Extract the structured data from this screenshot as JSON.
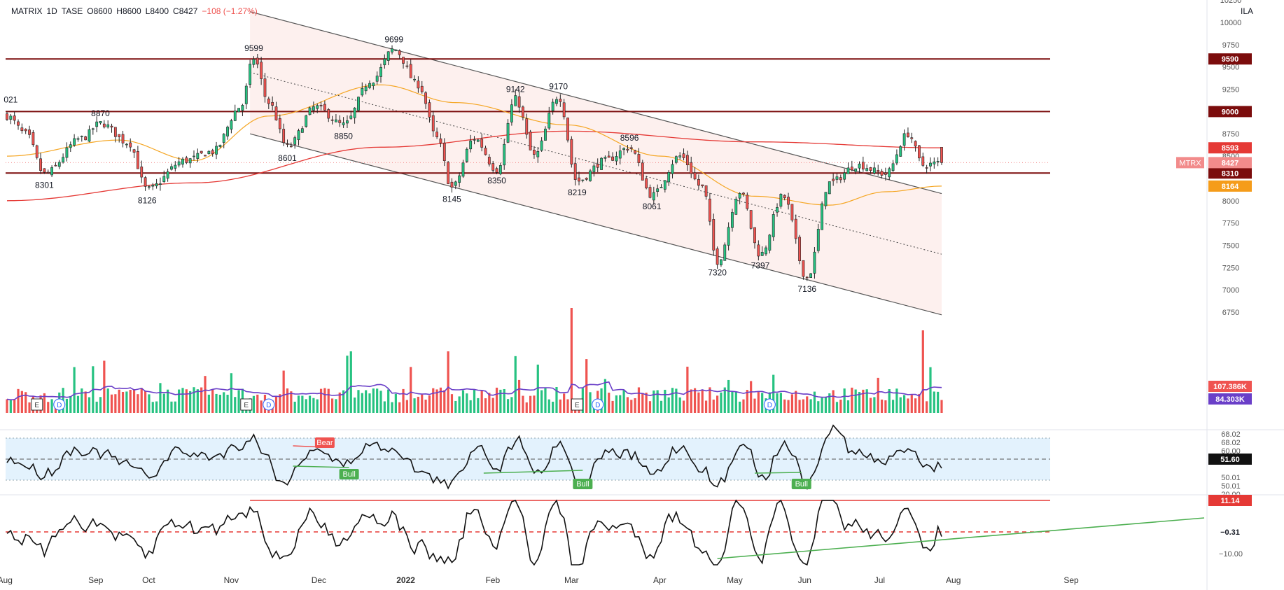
{
  "header": {
    "symbol": "MATRIX",
    "interval": "1D",
    "exchange": "TASE",
    "open": "O8600",
    "high": "H8600",
    "low": "L8400",
    "close": "C8427",
    "change": "−108 (−1.27%)",
    "currency": "ILA"
  },
  "colors": {
    "up": "#26c281",
    "down": "#ef5350",
    "level_line": "#7b0c0c",
    "ma_long": "#e53935",
    "ma_short": "#f5a623",
    "vol_ma": "#6a3fc8",
    "channel_fill": "#fdecea",
    "osc_band": "#e3f2fd",
    "trend_green": "#4caf50"
  },
  "chart_data": [
    {
      "type": "candlestick",
      "x_labels": [
        "Aug",
        "Sep",
        "Oct",
        "Nov",
        "Dec",
        "2022",
        "Feb",
        "Mar",
        "Apr",
        "May",
        "Jun",
        "Jul",
        "Aug",
        "Sep"
      ],
      "price_axis_ticks": [
        10250,
        10000,
        9750,
        9500,
        9250,
        8750,
        8500,
        8000,
        7750,
        7500,
        7250,
        7000,
        6750
      ],
      "ylim": [
        6650,
        10300
      ],
      "anchors": [
        {
          "t": 0,
          "v": 8950
        },
        {
          "t": 10,
          "v": 8750
        },
        {
          "t": 20,
          "v": 8301
        },
        {
          "t": 40,
          "v": 8700
        },
        {
          "t": 50,
          "v": 8870
        },
        {
          "t": 65,
          "v": 8650
        },
        {
          "t": 75,
          "v": 8126
        },
        {
          "t": 95,
          "v": 8450
        },
        {
          "t": 110,
          "v": 8550
        },
        {
          "t": 125,
          "v": 9050
        },
        {
          "t": 132,
          "v": 9599
        },
        {
          "t": 140,
          "v": 9100
        },
        {
          "t": 150,
          "v": 8601
        },
        {
          "t": 165,
          "v": 9050
        },
        {
          "t": 180,
          "v": 8850
        },
        {
          "t": 195,
          "v": 9350
        },
        {
          "t": 207,
          "v": 9699
        },
        {
          "t": 220,
          "v": 9300
        },
        {
          "t": 230,
          "v": 8700
        },
        {
          "t": 238,
          "v": 8145
        },
        {
          "t": 250,
          "v": 8700
        },
        {
          "t": 262,
          "v": 8350
        },
        {
          "t": 272,
          "v": 9142
        },
        {
          "t": 282,
          "v": 8500
        },
        {
          "t": 295,
          "v": 9170
        },
        {
          "t": 305,
          "v": 8219
        },
        {
          "t": 320,
          "v": 8450
        },
        {
          "t": 333,
          "v": 8596
        },
        {
          "t": 345,
          "v": 8061
        },
        {
          "t": 360,
          "v": 8500
        },
        {
          "t": 372,
          "v": 8150
        },
        {
          "t": 380,
          "v": 7320
        },
        {
          "t": 392,
          "v": 8100
        },
        {
          "t": 403,
          "v": 7397
        },
        {
          "t": 415,
          "v": 8050
        },
        {
          "t": 428,
          "v": 7136
        },
        {
          "t": 440,
          "v": 8200
        },
        {
          "t": 455,
          "v": 8400
        },
        {
          "t": 470,
          "v": 8300
        },
        {
          "t": 482,
          "v": 8750
        },
        {
          "t": 490,
          "v": 8400
        },
        {
          "t": 500,
          "v": 8427
        }
      ],
      "annotations": [
        {
          "t": 2,
          "v": 9021,
          "text": "021",
          "pos": "above"
        },
        {
          "t": 20,
          "v": 8301,
          "text": "8301",
          "pos": "below"
        },
        {
          "t": 50,
          "v": 8870,
          "text": "8870",
          "pos": "above"
        },
        {
          "t": 75,
          "v": 8126,
          "text": "8126",
          "pos": "below"
        },
        {
          "t": 132,
          "v": 9599,
          "text": "9599",
          "pos": "above"
        },
        {
          "t": 150,
          "v": 8601,
          "text": "8601",
          "pos": "below"
        },
        {
          "t": 180,
          "v": 8850,
          "text": "8850",
          "pos": "below"
        },
        {
          "t": 207,
          "v": 9699,
          "text": "9699",
          "pos": "above"
        },
        {
          "t": 238,
          "v": 8145,
          "text": "8145",
          "pos": "below"
        },
        {
          "t": 262,
          "v": 8350,
          "text": "8350",
          "pos": "below"
        },
        {
          "t": 272,
          "v": 9142,
          "text": "9142",
          "pos": "above"
        },
        {
          "t": 295,
          "v": 9170,
          "text": "9170",
          "pos": "above"
        },
        {
          "t": 305,
          "v": 8219,
          "text": "8219",
          "pos": "below"
        },
        {
          "t": 333,
          "v": 8596,
          "text": "8596",
          "pos": "above"
        },
        {
          "t": 345,
          "v": 8061,
          "text": "8061",
          "pos": "below"
        },
        {
          "t": 380,
          "v": 7320,
          "text": "7320",
          "pos": "below"
        },
        {
          "t": 403,
          "v": 7397,
          "text": "7397",
          "pos": "below"
        },
        {
          "t": 428,
          "v": 7136,
          "text": "7136",
          "pos": "below"
        }
      ],
      "horizontal_levels": [
        {
          "value": 9590,
          "label": "9590"
        },
        {
          "value": 9000,
          "label": "9000"
        },
        {
          "value": 8310,
          "label": "8310"
        }
      ],
      "channel": {
        "upper": [
          {
            "t": 130,
            "v": 10120
          },
          {
            "t": 500,
            "v": 8080
          }
        ],
        "lower": [
          {
            "t": 130,
            "v": 8750
          },
          {
            "t": 500,
            "v": 6720
          }
        ],
        "mid": [
          {
            "t": 130,
            "v": 9440
          },
          {
            "t": 500,
            "v": 7400
          }
        ]
      },
      "price_labels": [
        {
          "value": 8593,
          "text": "8593",
          "color": "#e53935"
        },
        {
          "value": 8427,
          "text": "8427",
          "color": "#f28b8b"
        },
        {
          "value": 8164,
          "text": "8164",
          "color": "#f59c1a"
        }
      ],
      "last_symbol_tag": "MTRX",
      "ma_long": [
        {
          "t": 0,
          "v": 8000
        },
        {
          "t": 100,
          "v": 8200
        },
        {
          "t": 200,
          "v": 8600
        },
        {
          "t": 300,
          "v": 8780
        },
        {
          "t": 400,
          "v": 8660
        },
        {
          "t": 500,
          "v": 8593
        }
      ],
      "ma_short": [
        {
          "t": 0,
          "v": 8500
        },
        {
          "t": 60,
          "v": 8680
        },
        {
          "t": 100,
          "v": 8450
        },
        {
          "t": 140,
          "v": 8950
        },
        {
          "t": 200,
          "v": 9300
        },
        {
          "t": 240,
          "v": 9100
        },
        {
          "t": 300,
          "v": 8850
        },
        {
          "t": 350,
          "v": 8500
        },
        {
          "t": 400,
          "v": 8050
        },
        {
          "t": 440,
          "v": 7950
        },
        {
          "t": 470,
          "v": 8100
        },
        {
          "t": 500,
          "v": 8164
        }
      ]
    },
    {
      "type": "bar",
      "name": "volume",
      "labels": [
        {
          "text": "107.386K",
          "color": "#ef5350"
        },
        {
          "text": "84.303K",
          "color": "#6a3fc8"
        }
      ],
      "events": [
        {
          "t": 16,
          "kind": "E"
        },
        {
          "t": 28,
          "kind": "D"
        },
        {
          "t": 128,
          "kind": "E"
        },
        {
          "t": 140,
          "kind": "D"
        },
        {
          "t": 305,
          "kind": "E"
        },
        {
          "t": 316,
          "kind": "D"
        },
        {
          "t": 408,
          "kind": "D"
        }
      ]
    },
    {
      "type": "line",
      "name": "rsi",
      "ticks": [
        "68.02",
        "68.02",
        "60.00",
        "50.01",
        "50.01",
        "20.00"
      ],
      "value_label": "51.60",
      "signals": [
        {
          "t": 170,
          "text": "Bear",
          "kind": "bear"
        },
        {
          "t": 183,
          "text": "Bull",
          "kind": "bull"
        },
        {
          "t": 308,
          "text": "Bull",
          "kind": "bull"
        },
        {
          "t": 425,
          "text": "Bull",
          "kind": "bull"
        }
      ]
    },
    {
      "type": "line",
      "name": "oscillator",
      "ticks": [
        "−10.00"
      ],
      "labels": [
        {
          "text": "11.14",
          "color": "#e53935"
        },
        {
          "text": "−0.31",
          "color": "#131722"
        }
      ]
    }
  ]
}
